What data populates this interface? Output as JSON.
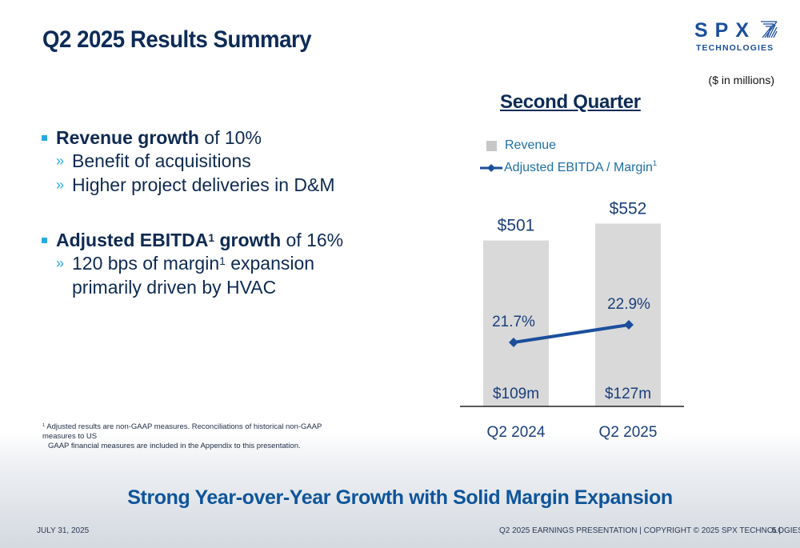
{
  "slide": {
    "title": "Q2 2025 Results Summary",
    "logo": {
      "main": "SPX",
      "sub": "TECHNOLOGIES",
      "mark_icon": "spx-slash-mark-icon"
    },
    "units_note": "($ in millions)",
    "bullets": [
      {
        "bold": "Revenue growth",
        "rest": " of 10%",
        "subs": [
          "Benefit of acquisitions",
          "Higher project deliveries in D&M"
        ]
      },
      {
        "bold_a": "Adjusted EBITDA",
        "sup": "1",
        "bold_b": " growth",
        "rest": " of 16%",
        "sub_a": "120 bps of margin",
        "sub_sup": "1",
        "sub_b": " expansion",
        "sub_cont": "primarily driven by HVAC"
      }
    ],
    "sub_bullet_glyph": "»",
    "footnote": {
      "marker": "1",
      "line1": " Adjusted results are non-GAAP measures. Reconciliations of historical non-GAAP measures to US",
      "line2": "GAAP financial measures are included in the Appendix to this presentation."
    },
    "tagline": "Strong Year-over-Year Growth with Solid Margin Expansion",
    "footer": {
      "date": "JULY 31, 2025",
      "text": "Q2 2025 EARNINGS PRESENTATION | COPYRIGHT © 2025 SPX TECHNOLOGIES",
      "page": "5 |"
    }
  },
  "colors": {
    "navy": "#0d2b57",
    "accent_blue": "#1b4f9c",
    "bullet_cyan": "#29a9e1",
    "bar_gray": "#d9d9d9",
    "line_blue": "#1b4f9c",
    "tagline_blue": "#0e559b"
  },
  "chart_data": {
    "type": "bar",
    "title": "Second Quarter",
    "categories": [
      "Q2 2024",
      "Q2 2025"
    ],
    "series": [
      {
        "name": "Revenue",
        "kind": "bar",
        "values": [
          501,
          552
        ],
        "labels": [
          "$501",
          "$552"
        ]
      },
      {
        "name": "Adjusted EBITDA / Margin",
        "name_sup": "1",
        "kind": "line",
        "values": [
          109,
          127
        ],
        "labels": [
          "$109m",
          "$127m"
        ],
        "margin_pct": [
          21.7,
          22.9
        ],
        "margin_labels": [
          "21.7%",
          "22.9%"
        ]
      }
    ],
    "legend_position": "top-left",
    "xlabel": "",
    "ylabel": "",
    "units": "$ in millions",
    "grid": false
  }
}
